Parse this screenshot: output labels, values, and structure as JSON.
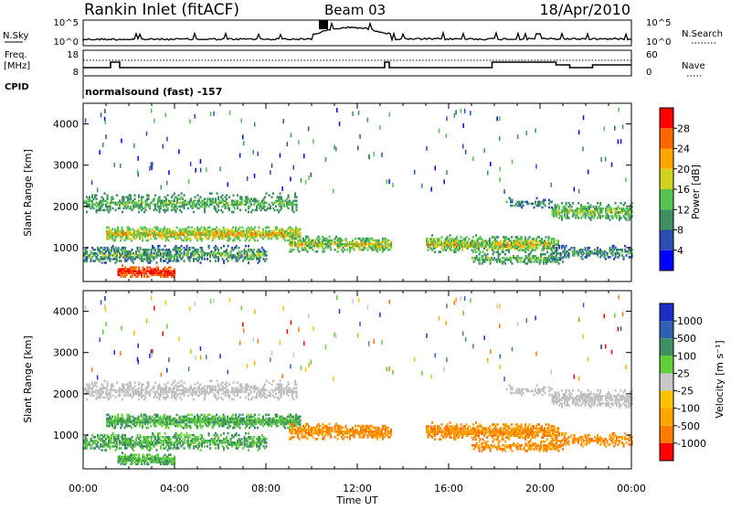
{
  "header": {
    "station": "Rankin Inlet (fitACF)",
    "beam": "Beam 03",
    "date": "18/Apr/2010"
  },
  "strip_labels": {
    "nsky": "N.Sky",
    "nsky_ticks": [
      "10^5",
      "10^0"
    ],
    "nsearch": "N.Search",
    "nsearch_ticks": [
      "10^5",
      "10^0"
    ],
    "freq": "Freq.",
    "freq_unit": "[MHz]",
    "freq_ticks": [
      "18",
      "8"
    ],
    "nave": "Nave",
    "nave_ticks": [
      "60",
      "0"
    ],
    "cpid": "CPID",
    "cpid_value": "normalsound (fast) -157"
  },
  "colors": {
    "power": [
      "#0000ff",
      "#2a4fb0",
      "#3e8f62",
      "#54c34f",
      "#d2d21e",
      "#ffa500",
      "#ff6600",
      "#ff0000"
    ],
    "velocity": [
      "#ff0000",
      "#ff7a00",
      "#ffa500",
      "#ffc100",
      "#c8c8c8",
      "#5fd03a",
      "#3e8f62",
      "#3060b0",
      "#1a2ec8"
    ],
    "ground_scatter": "#c0c0c0"
  },
  "chart_data": [
    {
      "type": "heatmap",
      "name": "power",
      "xlabel": "",
      "ylabel": "Slant Range [km]",
      "x_ticks": [
        "00:00",
        "04:00",
        "08:00",
        "12:00",
        "16:00",
        "20:00",
        "00:00"
      ],
      "x_range_hours": [
        0,
        24
      ],
      "y_ticks": [
        1000,
        2000,
        3000,
        4000
      ],
      "y_range_km": [
        180,
        4500
      ],
      "colorbar": {
        "label": "Power [dB]",
        "ticks": [
          "4",
          "8",
          "12",
          "16",
          "20",
          "24",
          "28"
        ],
        "range": [
          0,
          32
        ]
      }
    },
    {
      "type": "heatmap",
      "name": "velocity",
      "xlabel": "Time UT",
      "ylabel": "Slant Range [km]",
      "x_ticks": [
        "00:00",
        "04:00",
        "08:00",
        "12:00",
        "16:00",
        "20:00",
        "00:00"
      ],
      "x_range_hours": [
        0,
        24
      ],
      "y_ticks": [
        1000,
        2000,
        3000,
        4000
      ],
      "y_range_km": [
        180,
        4500
      ],
      "colorbar": {
        "label": "Velocity [m s⁻¹]",
        "ticks": [
          "1000",
          "500",
          "100",
          "25",
          "-25",
          "-100",
          "-500",
          "-1000"
        ]
      }
    }
  ]
}
